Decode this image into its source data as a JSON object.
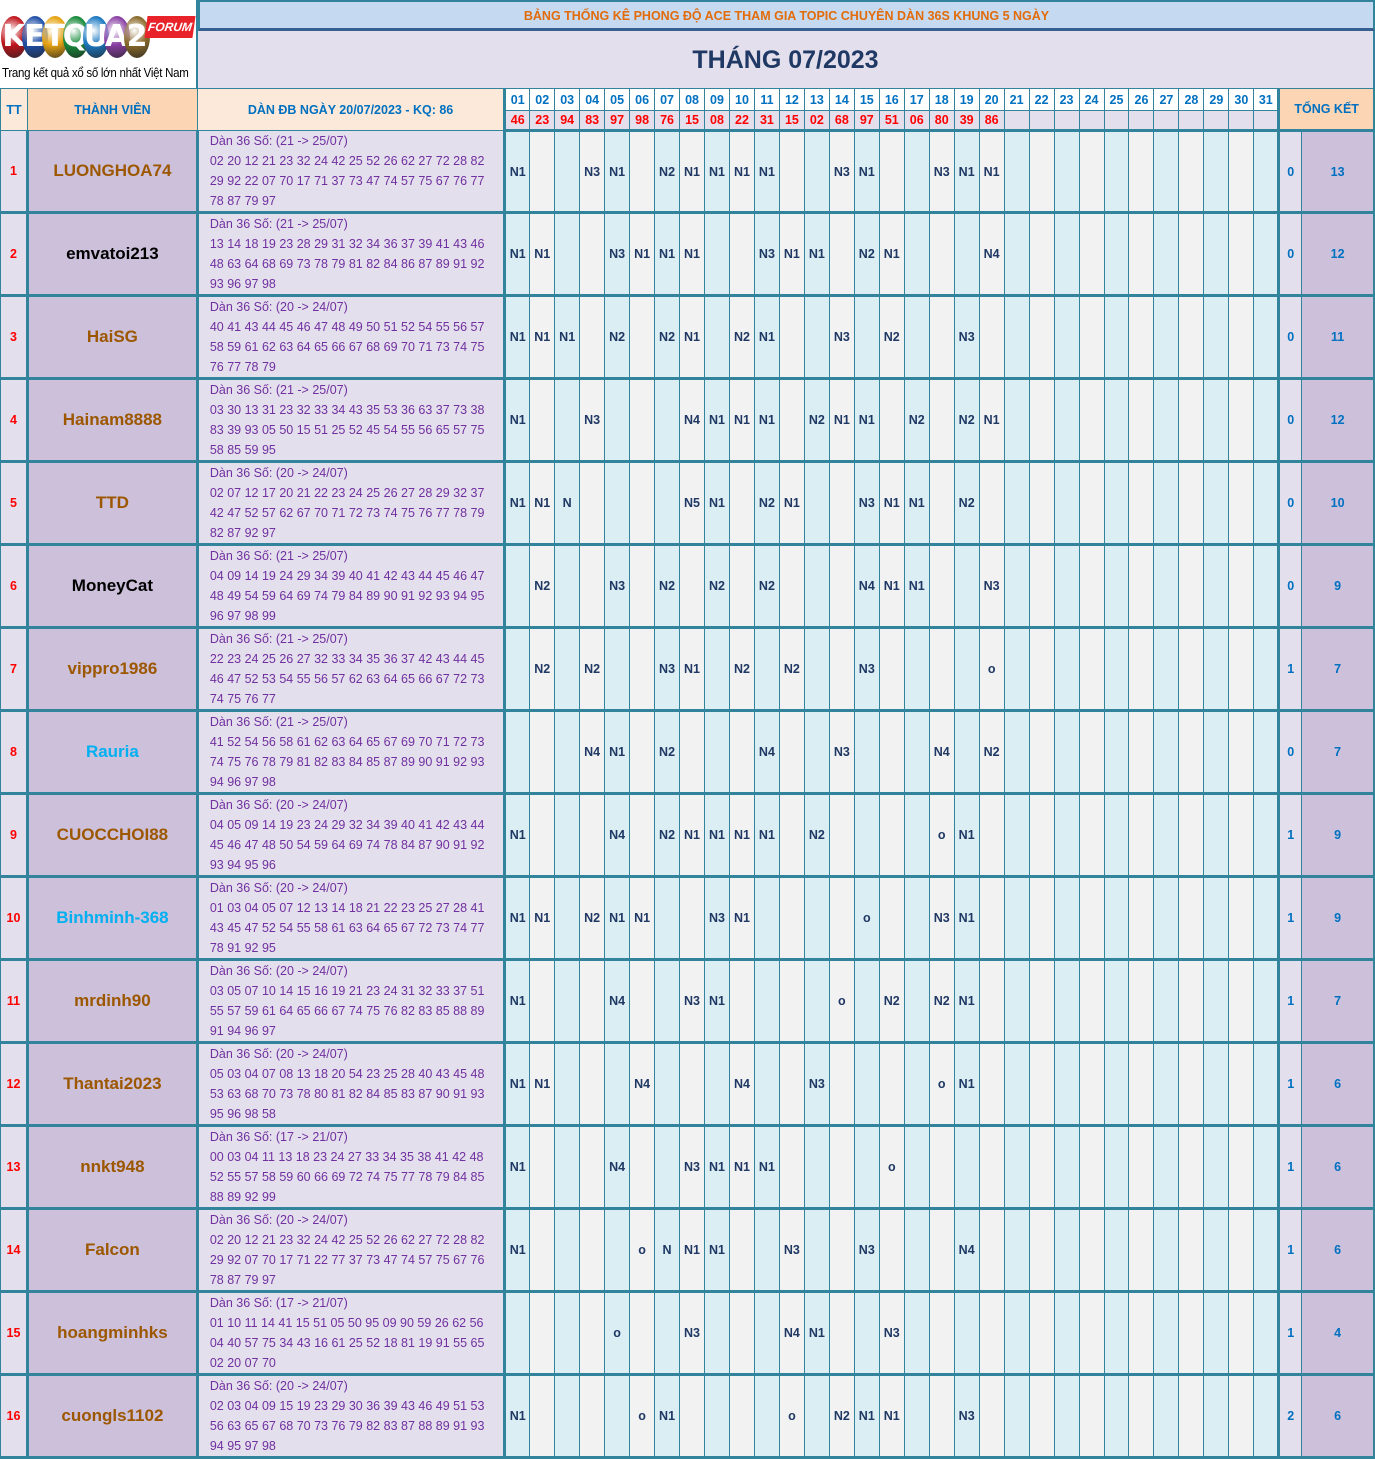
{
  "logo": {
    "letters": [
      "K",
      "E",
      "T",
      "Q",
      "U",
      "A",
      "2"
    ],
    "colors": [
      "#c0141c",
      "#1f4fa6",
      "#e6a312",
      "#168a3a",
      "#1a78c2",
      "#8a3fa3",
      "#8a6a2a"
    ],
    "badge": "FORUM",
    "tagline": "Trang kết quả xổ số lớn nhất Việt Nam"
  },
  "header": {
    "banner": "BẢNG THỐNG KÊ PHONG ĐỘ ACE THAM GIA TOPIC CHUYÊN DÀN 36S KHUNG 5 NGÀY",
    "month": "THÁNG 07/2023",
    "col_tt": "TT",
    "col_member": "THÀNH VIÊN",
    "col_dan": "DÀN ĐB NGÀY 20/07/2023 - KQ: 86",
    "col_summary": "TỔNG KẾT"
  },
  "days": [
    "01",
    "02",
    "03",
    "04",
    "05",
    "06",
    "07",
    "08",
    "09",
    "10",
    "11",
    "12",
    "13",
    "14",
    "15",
    "16",
    "17",
    "18",
    "19",
    "20",
    "21",
    "22",
    "23",
    "24",
    "25",
    "26",
    "27",
    "28",
    "29",
    "30",
    "31"
  ],
  "results": [
    "46",
    "23",
    "94",
    "83",
    "97",
    "98",
    "76",
    "15",
    "08",
    "22",
    "31",
    "15",
    "02",
    "68",
    "97",
    "51",
    "06",
    "80",
    "39",
    "86",
    "",
    "",
    "",
    "",
    "",
    "",
    "",
    "",
    "",
    "",
    ""
  ],
  "colors": {
    "brown": "#9c5700",
    "black": "#000000",
    "cyan": "#00b0f0"
  },
  "members": [
    {
      "tt": "1",
      "name": "LUONGHOA74",
      "color": "brown",
      "range": "Dàn 36 Số: (21 -> 25/07)",
      "numbers": "02 20 12 21 23 32 24 42 25 52 26 62 27 72 28 82 29 92 22 07 70 17 71 37 73 47 74 57 75 67 76 77 78 87 79 97",
      "marks": {
        "1": "N1",
        "4": "N3",
        "5": "N1",
        "7": "N2",
        "8": "N1",
        "9": "N1",
        "10": "N1",
        "11": "N1",
        "14": "N3",
        "15": "N1",
        "18": "N3",
        "19": "N1",
        "20": "N1"
      },
      "miss": "0",
      "total": "13"
    },
    {
      "tt": "2",
      "name": "emvatoi213",
      "color": "black",
      "range": "Dàn 36 Số: (21 -> 25/07)",
      "numbers": "13 14 18 19 23 28 29 31 32 34 36 37 39 41 43 46 48 63 64 68 69 73 78 79 81 82 84 86 87 89 91 92 93 96 97 98",
      "marks": {
        "1": "N1",
        "2": "N1",
        "5": "N3",
        "6": "N1",
        "7": "N1",
        "8": "N1",
        "11": "N3",
        "12": "N1",
        "13": "N1",
        "15": "N2",
        "16": "N1",
        "20": "N4"
      },
      "miss": "0",
      "total": "12"
    },
    {
      "tt": "3",
      "name": "HaiSG",
      "color": "brown",
      "range": "Dàn 36 Số: (20 -> 24/07)",
      "numbers": "40 41 43 44 45 46 47 48 49 50 51 52 54 55 56 57 58 59 61 62 63 64 65 66 67 68 69 70 71 73 74 75 76 77 78 79",
      "marks": {
        "1": "N1",
        "2": "N1",
        "3": "N1",
        "5": "N2",
        "7": "N2",
        "8": "N1",
        "10": "N2",
        "11": "N1",
        "14": "N3",
        "16": "N2",
        "19": "N3"
      },
      "miss": "0",
      "total": "11"
    },
    {
      "tt": "4",
      "name": "Hainam8888",
      "color": "brown",
      "range": "Dàn 36 Số: (21 -> 25/07)",
      "numbers": "03 30 13 31 23 32 33 34 43 35 53 36 63 37 73 38 83 39 93 05 50 15 51 25 52 45 54 55 56 65 57 75 58 85 59 95",
      "marks": {
        "1": "N1",
        "4": "N3",
        "8": "N4",
        "9": "N1",
        "10": "N1",
        "11": "N1",
        "13": "N2",
        "14": "N1",
        "15": "N1",
        "17": "N2",
        "19": "N2",
        "20": "N1"
      },
      "miss": "0",
      "total": "12"
    },
    {
      "tt": "5",
      "name": "TTD",
      "color": "brown",
      "range": "Dàn 36 Số: (20 -> 24/07)",
      "numbers": "02 07 12 17 20 21 22 23 24 25 26 27 28 29 32 37 42 47 52 57 62 67 70 71 72 73 74 75 76 77 78 79 82 87 92 97",
      "marks": {
        "1": "N1",
        "2": "N1",
        "3": "N",
        "8": "N5",
        "9": "N1",
        "11": "N2",
        "12": "N1",
        "15": "N3",
        "16": "N1",
        "17": "N1",
        "19": "N2"
      },
      "miss": "0",
      "total": "10"
    },
    {
      "tt": "6",
      "name": "MoneyCat",
      "color": "black",
      "range": "Dàn 36 Số: (21 -> 25/07)",
      "numbers": "04 09 14 19 24 29 34 39 40 41 42 43 44 45 46 47 48 49 54 59 64 69 74 79 84 89 90 91 92 93 94 95 96 97 98 99",
      "marks": {
        "2": "N2",
        "5": "N3",
        "7": "N2",
        "9": "N2",
        "11": "N2",
        "15": "N4",
        "16": "N1",
        "17": "N1",
        "20": "N3"
      },
      "miss": "0",
      "total": "9"
    },
    {
      "tt": "7",
      "name": "vippro1986",
      "color": "brown",
      "range": "Dàn 36 Số: (21 -> 25/07)",
      "numbers": "22 23 24 25 26 27 32 33 34 35 36 37 42 43 44 45 46 47 52 53 54 55 56 57 62 63 64 65 66 67 72 73 74 75 76 77",
      "marks": {
        "2": "N2",
        "4": "N2",
        "7": "N3",
        "8": "N1",
        "10": "N2",
        "12": "N2",
        "15": "N3",
        "20": "o"
      },
      "miss": "1",
      "total": "7"
    },
    {
      "tt": "8",
      "name": "Rauria",
      "color": "cyan",
      "range": "Dàn 36 Số: (21 -> 25/07)",
      "numbers": "41 52 54 56 58 61 62 63 64 65 67 69 70 71 72 73 74 75 76 78 79 81 82 83 84 85 87 89 90 91 92 93 94 96 97 98",
      "marks": {
        "4": "N4",
        "5": "N1",
        "7": "N2",
        "11": "N4",
        "14": "N3",
        "18": "N4",
        "20": "N2"
      },
      "miss": "0",
      "total": "7"
    },
    {
      "tt": "9",
      "name": "CUOCCHOI88",
      "color": "brown",
      "range": "Dàn 36 Số: (20 -> 24/07)",
      "numbers": "04 05 09 14 19 23 24 29 32 34 39 40 41 42 43 44 45 46 47 48 50 54 59 64 69 74 78 84 87 90 91 92 93 94 95 96",
      "marks": {
        "1": "N1",
        "5": "N4",
        "7": "N2",
        "8": "N1",
        "9": "N1",
        "10": "N1",
        "11": "N1",
        "13": "N2",
        "18": "o",
        "19": "N1"
      },
      "miss": "1",
      "total": "9"
    },
    {
      "tt": "10",
      "name": "Binhminh-368",
      "color": "cyan",
      "range": "Dàn 36 Số: (20 -> 24/07)",
      "numbers": "01 03 04 05 07 12 13 14 18 21 22 23 25 27 28 41 43 45 47 52 54 55 58 61 63 64 65 67 72 73 74 77 78 91 92 95",
      "marks": {
        "1": "N1",
        "2": "N1",
        "4": "N2",
        "5": "N1",
        "6": "N1",
        "9": "N3",
        "10": "N1",
        "15": "o",
        "18": "N3",
        "19": "N1"
      },
      "miss": "1",
      "total": "9"
    },
    {
      "tt": "11",
      "name": "mrdinh90",
      "color": "brown",
      "range": "Dàn 36 Số: (20 -> 24/07)",
      "numbers": "03 05 07 10 14 15 16 19 21 23 24 31 32 33 37 51 55 57 59 61 64 65 66 67 74 75 76 82 83 85 88 89 91 94 96 97",
      "marks": {
        "1": "N1",
        "5": "N4",
        "8": "N3",
        "9": "N1",
        "14": "o",
        "16": "N2",
        "18": "N2",
        "19": "N1"
      },
      "miss": "1",
      "total": "7"
    },
    {
      "tt": "12",
      "name": "Thantai2023",
      "color": "brown",
      "range": "Dàn 36 Số: (20 -> 24/07)",
      "numbers": "05 03 04 07 08 13 18 20 54 23 25 28 40 43 45 48 53 63 68 70 73 78 80 81 82 84 85 83 87 90 91 93 95 96 98 58",
      "marks": {
        "1": "N1",
        "2": "N1",
        "6": "N4",
        "10": "N4",
        "13": "N3",
        "18": "o",
        "19": "N1"
      },
      "miss": "1",
      "total": "6"
    },
    {
      "tt": "13",
      "name": "nnkt948",
      "color": "brown",
      "range": "Dàn 36 Số: (17 -> 21/07)",
      "numbers": "00 03 04 11 13 18 23 24 27 33 34 35 38 41 42 48 52 55 57 58 59 60 66 69 72 74 75 77 78 79 84 85 88 89 92 99",
      "marks": {
        "1": "N1",
        "5": "N4",
        "8": "N3",
        "9": "N1",
        "10": "N1",
        "11": "N1",
        "16": "o"
      },
      "miss": "1",
      "total": "6"
    },
    {
      "tt": "14",
      "name": "Falcon",
      "color": "brown",
      "range": "Dàn 36 Số: (20 -> 24/07)",
      "numbers": "02 20 12 21 23 32 24 42 25 52 26 62 27 72 28 82 29 92 07 70 17 71 22 77 37 73 47 74 57 75 67 76 78 87 79 97",
      "marks": {
        "1": "N1",
        "6": "o",
        "7": "N",
        "8": "N1",
        "9": "N1",
        "12": "N3",
        "15": "N3",
        "19": "N4"
      },
      "miss": "1",
      "total": "6"
    },
    {
      "tt": "15",
      "name": "hoangminhks",
      "color": "brown",
      "range": "Dàn 36 Số: (17 -> 21/07)",
      "numbers": "01 10 11 14 41 15 51 05 50 95 09 90 59 26 62 56 04 40 57 75 34 43 16 61 25 52 18 81 19 91 55 65 02 20 07 70",
      "marks": {
        "5": "o",
        "8": "N3",
        "12": "N4",
        "13": "N1",
        "16": "N3"
      },
      "miss": "1",
      "total": "4"
    },
    {
      "tt": "16",
      "name": "cuongls1102",
      "color": "brown",
      "range": "Dàn 36 Số: (20 -> 24/07)",
      "numbers": "02 03 04 09 15 19 23 29 30 36 39 43 46 49 51 53 56 63 65 67 68 70 73 76 79 82 83 87 88 89 91 93 94 95 97 98",
      "marks": {
        "1": "N1",
        "6": "o",
        "7": "N1",
        "12": "o",
        "14": "N2",
        "15": "N1",
        "16": "N1",
        "19": "N3"
      },
      "miss": "2",
      "total": "6"
    }
  ]
}
